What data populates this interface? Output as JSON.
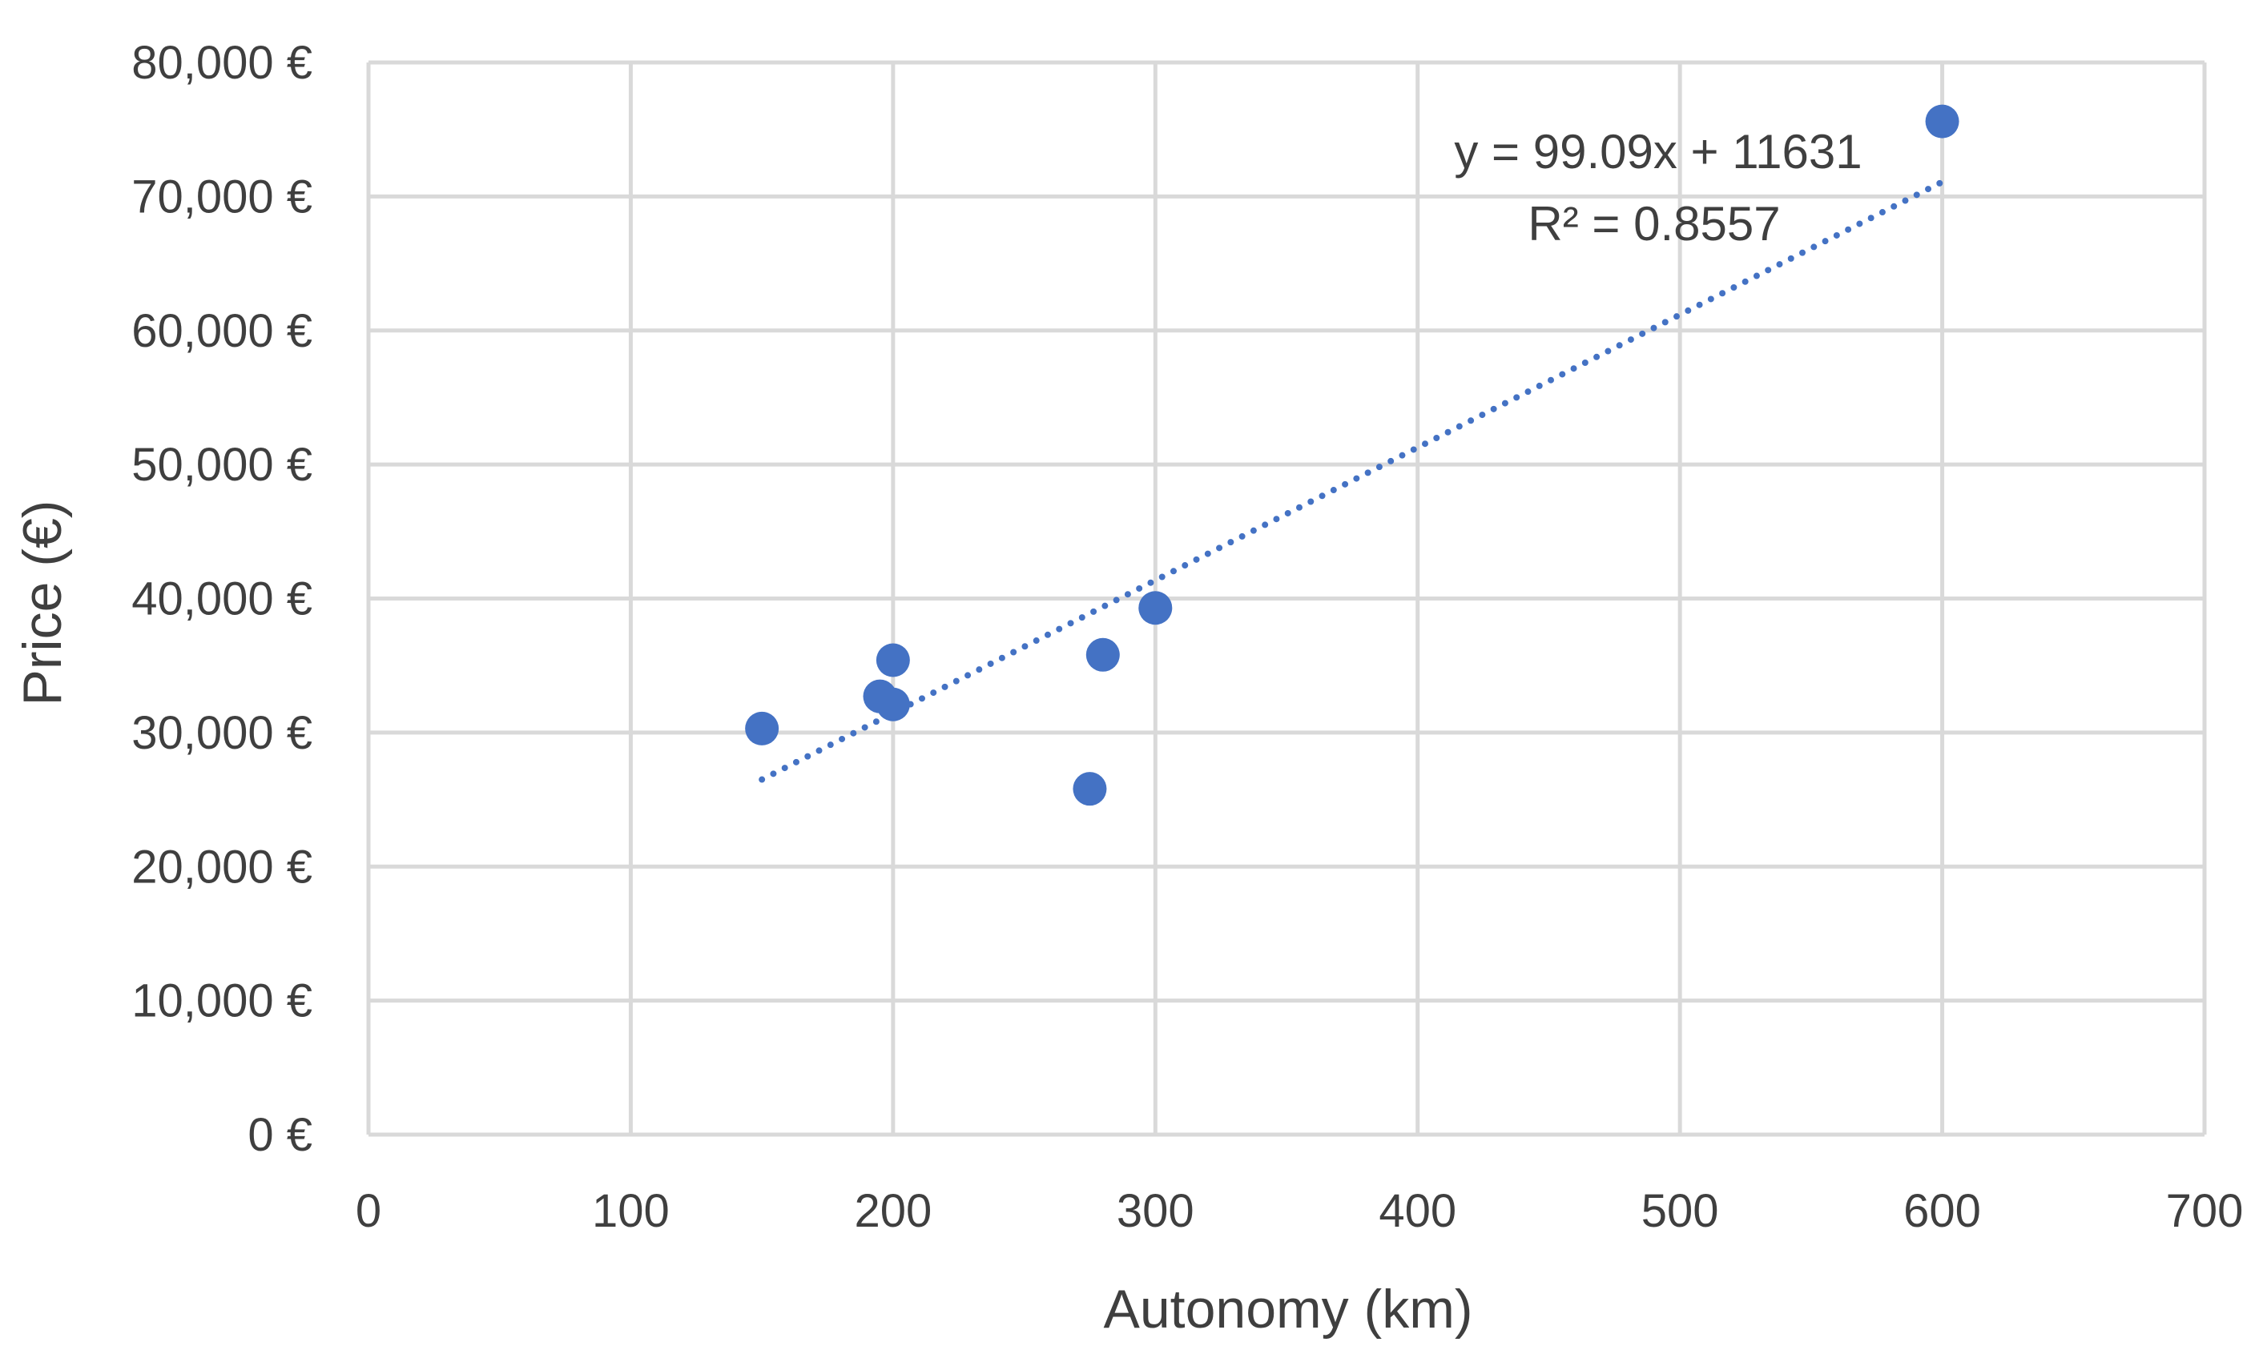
{
  "chart_data": {
    "type": "scatter",
    "xlabel": "Autonomy (km)",
    "ylabel": "Price (€)",
    "xlim": [
      0,
      700
    ],
    "ylim": [
      0,
      80000
    ],
    "xticks": [
      0,
      100,
      200,
      300,
      400,
      500,
      600,
      700
    ],
    "yticks": [
      0,
      10000,
      20000,
      30000,
      40000,
      50000,
      60000,
      70000,
      80000
    ],
    "xtick_labels": [
      "0",
      "100",
      "200",
      "300",
      "400",
      "500",
      "600",
      "700"
    ],
    "ytick_labels": [
      "0 €",
      "10,000 €",
      "20,000 €",
      "30,000 €",
      "40,000 €",
      "50,000 €",
      "60,000 €",
      "70,000 €",
      "80,000 €"
    ],
    "grid": true,
    "legend": "none",
    "series": [
      {
        "color": "#4472c4",
        "points": [
          {
            "x": 150,
            "y": 30300
          },
          {
            "x": 195,
            "y": 32700
          },
          {
            "x": 200,
            "y": 35400
          },
          {
            "x": 200,
            "y": 32100
          },
          {
            "x": 275,
            "y": 25800
          },
          {
            "x": 280,
            "y": 35800
          },
          {
            "x": 300,
            "y": 39300
          },
          {
            "x": 600,
            "y": 75600
          }
        ]
      }
    ],
    "trendline": {
      "type": "linear",
      "style": "dotted",
      "color": "#4472c4",
      "slope": 99.09,
      "intercept": 11631,
      "x_range": [
        150,
        600
      ],
      "equation_label": "y = 99.09x + 11631",
      "r2_label": "R² = 0.8557"
    }
  }
}
